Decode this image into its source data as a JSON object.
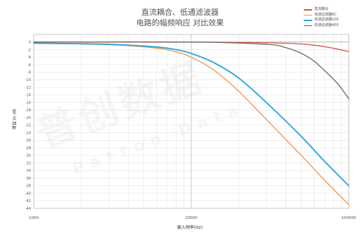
{
  "chart_data": {
    "type": "line",
    "title": "直流耦合、低通滤波器",
    "subtitle": "电路的幅频响应 对比效果",
    "xlabel": "输入频率(Hz)",
    "ylabel": "增益 in dB",
    "x_scale": "log",
    "xlim": [
      1000,
      100000
    ],
    "ylim": [
      -44,
      2
    ],
    "x_ticks": [
      1000,
      10000,
      100000
    ],
    "x_tick_labels": [
      "1000",
      "10000",
      "100000"
    ],
    "y_ticks": [
      0,
      -2,
      -4,
      -6,
      -8,
      -10,
      -12,
      -14,
      -16,
      -18,
      -20,
      -22,
      -24,
      -26,
      -28,
      -30,
      -32,
      -34,
      -36,
      -38,
      -40,
      -42,
      -44
    ],
    "grid": true,
    "legend_position": "top-right",
    "series": [
      {
        "name": "直流耦合",
        "color": "#d9544f",
        "x": [
          1000,
          10000,
          30000,
          50000,
          70000,
          100000
        ],
        "y": [
          0,
          0,
          -0.2,
          -0.5,
          -1.2,
          -2.5
        ]
      },
      {
        "name": "低通滤波器RC",
        "color": "#f0924a",
        "x": [
          1000,
          3000,
          6000,
          8000,
          10000,
          14000,
          20000,
          30000,
          50000,
          70000,
          100000
        ],
        "y": [
          -0.3,
          -0.7,
          -1.6,
          -2.6,
          -4,
          -7.5,
          -13,
          -20.5,
          -30,
          -36.5,
          -43
        ]
      },
      {
        "name": "低通滤波器100",
        "color": "#2aa8dc",
        "x": [
          1000,
          3000,
          6000,
          8000,
          10000,
          14000,
          20000,
          30000,
          50000,
          70000,
          100000
        ],
        "y": [
          -0.3,
          -0.6,
          -1.3,
          -2,
          -3,
          -5.5,
          -9.5,
          -16,
          -25,
          -31.5,
          -38
        ]
      },
      {
        "name": "低通滤波器400",
        "color": "#6f6558",
        "x": [
          1000,
          10000,
          30000,
          40000,
          50000,
          60000,
          70000,
          85000,
          100000
        ],
        "y": [
          0,
          0,
          -0.6,
          -1.5,
          -3,
          -5,
          -7.5,
          -11,
          -15
        ]
      }
    ]
  },
  "watermark": {
    "text_cn": "普创数据",
    "text_en": "Patron Data"
  }
}
